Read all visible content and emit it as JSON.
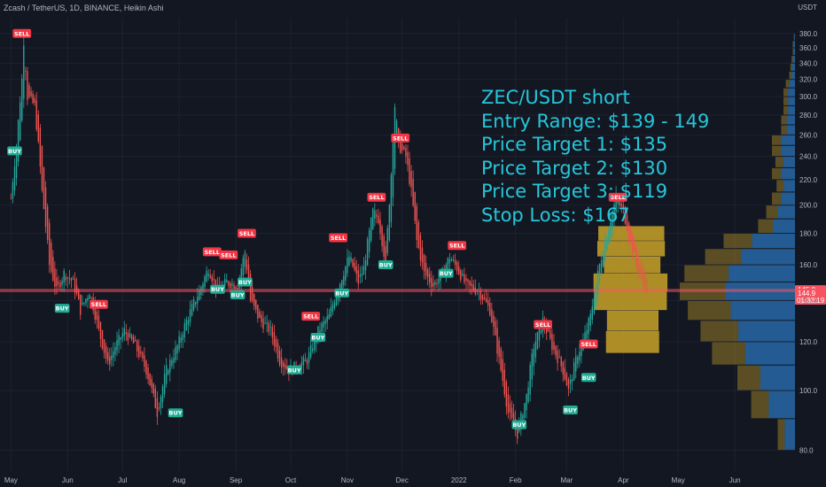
{
  "header": {
    "title": "Zcash / TetherUS, 1D, BINANCE, Heikin Ashi",
    "currency": "USDT"
  },
  "annotation": {
    "lines": [
      "ZEC/USDT short",
      "Entry Range: $139 - 149",
      "Price Target 1: $135",
      "Price Target 2: $130",
      "Price Target 3: $119",
      "Stop Loss: $167"
    ]
  },
  "chart_data": {
    "type": "candlestick",
    "title": "Zcash / TetherUS, 1D, BINANCE, Heikin Ashi",
    "ylim": [
      74,
      403
    ],
    "y_ticks": [
      80,
      100,
      120,
      140,
      160,
      180,
      200,
      220,
      240,
      260,
      280,
      300,
      320,
      340,
      360,
      380
    ],
    "x_tick_labels": [
      "May",
      "Jun",
      "Jul",
      "Aug",
      "Sep",
      "Oct",
      "Nov",
      "Dec",
      "2022",
      "Feb",
      "Mar",
      "Apr",
      "May",
      "Jun"
    ],
    "price_path": [
      [
        "2021-05-01",
        205
      ],
      [
        "2021-05-04",
        250
      ],
      [
        "2021-05-07",
        320
      ],
      [
        "2021-05-08",
        370
      ],
      [
        "2021-05-10",
        300
      ],
      [
        "2021-05-14",
        290
      ],
      [
        "2021-05-18",
        210
      ],
      [
        "2021-05-22",
        160
      ],
      [
        "2021-05-26",
        145
      ],
      [
        "2021-05-30",
        155
      ],
      [
        "2021-06-04",
        150
      ],
      [
        "2021-06-08",
        135
      ],
      [
        "2021-06-13",
        145
      ],
      [
        "2021-06-18",
        125
      ],
      [
        "2021-06-23",
        110
      ],
      [
        "2021-06-27",
        118
      ],
      [
        "2021-07-02",
        125
      ],
      [
        "2021-07-08",
        118
      ],
      [
        "2021-07-14",
        108
      ],
      [
        "2021-07-20",
        92
      ],
      [
        "2021-07-25",
        108
      ],
      [
        "2021-07-31",
        118
      ],
      [
        "2021-08-06",
        132
      ],
      [
        "2021-08-12",
        145
      ],
      [
        "2021-08-17",
        158
      ],
      [
        "2021-08-22",
        145
      ],
      [
        "2021-08-27",
        150
      ],
      [
        "2021-09-02",
        148
      ],
      [
        "2021-09-06",
        168
      ],
      [
        "2021-09-09",
        140
      ],
      [
        "2021-09-14",
        130
      ],
      [
        "2021-09-20",
        125
      ],
      [
        "2021-09-25",
        112
      ],
      [
        "2021-09-30",
        108
      ],
      [
        "2021-10-05",
        110
      ],
      [
        "2021-10-10",
        112
      ],
      [
        "2021-10-16",
        125
      ],
      [
        "2021-10-22",
        132
      ],
      [
        "2021-10-28",
        150
      ],
      [
        "2021-11-02",
        165
      ],
      [
        "2021-11-07",
        150
      ],
      [
        "2021-11-10",
        158
      ],
      [
        "2021-11-15",
        195
      ],
      [
        "2021-11-18",
        190
      ],
      [
        "2021-11-22",
        160
      ],
      [
        "2021-11-25",
        225
      ],
      [
        "2021-11-27",
        290
      ],
      [
        "2021-11-29",
        250
      ],
      [
        "2021-12-03",
        240
      ],
      [
        "2021-12-06",
        210
      ],
      [
        "2021-12-09",
        175
      ],
      [
        "2021-12-13",
        155
      ],
      [
        "2021-12-18",
        148
      ],
      [
        "2021-12-23",
        155
      ],
      [
        "2021-12-27",
        165
      ],
      [
        "2021-12-31",
        158
      ],
      [
        "2022-01-05",
        148
      ],
      [
        "2022-01-12",
        145
      ],
      [
        "2022-01-18",
        135
      ],
      [
        "2022-01-23",
        112
      ],
      [
        "2022-01-28",
        92
      ],
      [
        "2022-02-02",
        85
      ],
      [
        "2022-02-07",
        98
      ],
      [
        "2022-02-11",
        118
      ],
      [
        "2022-02-16",
        130
      ],
      [
        "2022-02-21",
        118
      ],
      [
        "2022-02-27",
        108
      ],
      [
        "2022-03-02",
        100
      ],
      [
        "2022-03-07",
        115
      ],
      [
        "2022-03-10",
        120
      ],
      [
        "2022-03-14",
        132
      ],
      [
        "2022-03-19",
        160
      ],
      [
        "2022-03-24",
        185
      ],
      [
        "2022-03-28",
        205
      ],
      [
        "2022-04-01",
        195
      ],
      [
        "2022-04-05",
        175
      ],
      [
        "2022-04-08",
        160
      ],
      [
        "2022-04-12",
        150
      ],
      [
        "2022-04-14",
        147
      ]
    ],
    "price_lines": [
      {
        "value": 145.8,
        "label": "145.8",
        "color": "#f7525f"
      },
      {
        "value": 144.9,
        "label": "144.9",
        "color": "#f7525f"
      }
    ],
    "countdown": "01:33:19",
    "signals": [
      {
        "label": "SELL",
        "type": "sell",
        "date": "2021-05-07",
        "price": 380
      },
      {
        "label": "BUY",
        "type": "buy",
        "date": "2021-05-03",
        "price": 245
      },
      {
        "label": "BUY",
        "type": "buy",
        "date": "2021-05-29",
        "price": 136
      },
      {
        "label": "SELL",
        "type": "sell",
        "date": "2021-06-18",
        "price": 138
      },
      {
        "label": "BUY",
        "type": "buy",
        "date": "2021-07-30",
        "price": 92
      },
      {
        "label": "SELL",
        "type": "sell",
        "date": "2021-08-19",
        "price": 168
      },
      {
        "label": "BUY",
        "type": "buy",
        "date": "2021-08-22",
        "price": 146
      },
      {
        "label": "SELL",
        "type": "sell",
        "date": "2021-08-28",
        "price": 166
      },
      {
        "label": "BUY",
        "type": "buy",
        "date": "2021-09-02",
        "price": 143
      },
      {
        "label": "SELL",
        "type": "sell",
        "date": "2021-09-07",
        "price": 180
      },
      {
        "label": "BUY",
        "type": "buy",
        "date": "2021-09-06",
        "price": 150
      },
      {
        "label": "BUY",
        "type": "buy",
        "date": "2021-10-03",
        "price": 108
      },
      {
        "label": "SELL",
        "type": "sell",
        "date": "2021-10-12",
        "price": 132
      },
      {
        "label": "BUY",
        "type": "buy",
        "date": "2021-10-16",
        "price": 122
      },
      {
        "label": "SELL",
        "type": "sell",
        "date": "2021-10-27",
        "price": 177
      },
      {
        "label": "BUY",
        "type": "buy",
        "date": "2021-10-29",
        "price": 144
      },
      {
        "label": "SELL",
        "type": "sell",
        "date": "2021-11-17",
        "price": 206
      },
      {
        "label": "BUY",
        "type": "buy",
        "date": "2021-11-22",
        "price": 160
      },
      {
        "label": "SELL",
        "type": "sell",
        "date": "2021-11-30",
        "price": 257
      },
      {
        "label": "BUY",
        "type": "buy",
        "date": "2021-12-25",
        "price": 155
      },
      {
        "label": "SELL",
        "type": "sell",
        "date": "2021-12-31",
        "price": 172
      },
      {
        "label": "BUY",
        "type": "buy",
        "date": "2022-02-03",
        "price": 88
      },
      {
        "label": "SELL",
        "type": "sell",
        "date": "2022-02-16",
        "price": 128
      },
      {
        "label": "BUY",
        "type": "buy",
        "date": "2022-03-03",
        "price": 93
      },
      {
        "label": "SELL",
        "type": "sell",
        "date": "2022-03-13",
        "price": 119
      },
      {
        "label": "BUY",
        "type": "buy",
        "date": "2022-03-13",
        "price": 105
      },
      {
        "label": "SELL",
        "type": "sell",
        "date": "2022-03-29",
        "price": 206
      }
    ],
    "volume_profile": {
      "right_side": [
        {
          "low": 80,
          "high": 90,
          "value": 0.15
        },
        {
          "low": 90,
          "high": 100,
          "value": 0.38
        },
        {
          "low": 100,
          "high": 110,
          "value": 0.5
        },
        {
          "low": 110,
          "high": 120,
          "value": 0.72
        },
        {
          "low": 120,
          "high": 130,
          "value": 0.82
        },
        {
          "low": 130,
          "high": 140,
          "value": 0.93
        },
        {
          "low": 140,
          "high": 150,
          "value": 1.0
        },
        {
          "low": 150,
          "high": 160,
          "value": 0.96
        },
        {
          "low": 160,
          "high": 170,
          "value": 0.78
        },
        {
          "low": 170,
          "high": 180,
          "value": 0.62
        },
        {
          "low": 180,
          "high": 190,
          "value": 0.32
        },
        {
          "low": 190,
          "high": 200,
          "value": 0.25
        },
        {
          "low": 200,
          "high": 210,
          "value": 0.2
        },
        {
          "low": 210,
          "high": 220,
          "value": 0.16
        },
        {
          "low": 220,
          "high": 230,
          "value": 0.2
        },
        {
          "low": 230,
          "high": 240,
          "value": 0.17
        },
        {
          "low": 240,
          "high": 250,
          "value": 0.2
        },
        {
          "low": 250,
          "high": 260,
          "value": 0.2
        },
        {
          "low": 260,
          "high": 270,
          "value": 0.12
        },
        {
          "low": 270,
          "high": 280,
          "value": 0.12
        },
        {
          "low": 280,
          "high": 290,
          "value": 0.1
        },
        {
          "low": 290,
          "high": 300,
          "value": 0.1
        },
        {
          "low": 300,
          "high": 310,
          "value": 0.1
        },
        {
          "low": 310,
          "high": 320,
          "value": 0.08
        },
        {
          "low": 320,
          "high": 330,
          "value": 0.05
        },
        {
          "low": 330,
          "high": 340,
          "value": 0.04
        },
        {
          "low": 340,
          "high": 350,
          "value": 0.03
        },
        {
          "low": 350,
          "high": 360,
          "value": 0.02
        },
        {
          "low": 360,
          "high": 370,
          "value": 0.02
        },
        {
          "low": 370,
          "high": 380,
          "value": 0.01
        }
      ],
      "session": [
        {
          "low": 115,
          "high": 125,
          "value": 0.33
        },
        {
          "low": 125,
          "high": 135,
          "value": 0.32
        },
        {
          "low": 135,
          "high": 145,
          "value": 0.45
        },
        {
          "low": 145,
          "high": 155,
          "value": 0.46
        },
        {
          "low": 155,
          "high": 165,
          "value": 0.35
        },
        {
          "low": 165,
          "high": 175,
          "value": 0.42
        },
        {
          "low": 175,
          "high": 185,
          "value": 0.41
        }
      ]
    },
    "colors": {
      "up": "#26a69a",
      "down": "#ef5350",
      "profile_blue": "#2a73b8",
      "profile_gold": "#c9a227",
      "background": "#131722",
      "grid": "#1e2230",
      "axis_text": "#b2b5be",
      "annotation": "#26c6da"
    },
    "grid": true,
    "log_scale": true
  }
}
